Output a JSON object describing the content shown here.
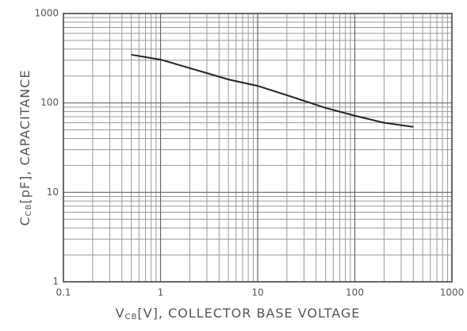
{
  "chart_data": {
    "type": "line",
    "ylabel": {
      "symbol": "C",
      "subscript": "CB",
      "text": "[pF], CAPACITANCE"
    },
    "xlabel": {
      "symbol": "V",
      "subscript": "CB",
      "text": "[V], COLLECTOR BASE VOLTAGE"
    },
    "x": [
      0.5,
      1,
      2,
      5,
      10,
      20,
      50,
      100,
      200,
      400
    ],
    "series": [
      {
        "name": "CCB",
        "color": "#222222",
        "values": [
          346,
          305,
          245,
          183,
          155,
          122,
          88,
          72,
          60,
          54
        ]
      }
    ],
    "xlim": [
      0.1,
      1000
    ],
    "ylim": [
      1,
      1000
    ],
    "xticks": [
      0.1,
      1,
      10,
      100,
      1000
    ],
    "yticks": [
      1,
      10,
      100,
      1000
    ],
    "xlog": true,
    "ylog": true,
    "grid": true
  }
}
